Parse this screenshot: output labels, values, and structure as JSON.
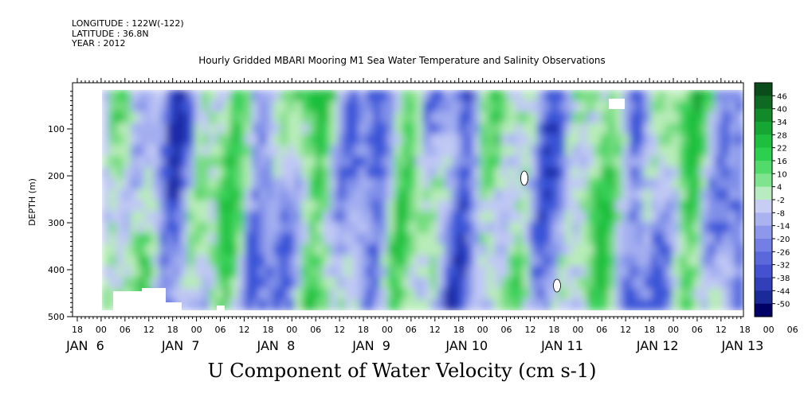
{
  "header": {
    "longitude": "LONGITUDE : 122W(-122)",
    "latitude": "LATITUDE : 36.8N",
    "year": "YEAR : 2012"
  },
  "chart_data": {
    "type": "heatmap",
    "title": "Hourly Gridded MBARI Mooring M1 Sea Water Temperature and Salinity Observations",
    "xlabel": "U Component of Water Velocity (cm s-1)",
    "ylabel": "DEPTH (m)",
    "ylim": [
      500,
      0
    ],
    "y_ticks": [
      100,
      200,
      300,
      400,
      500
    ],
    "x_hour_ticks": [
      "18",
      "00",
      "06",
      "12",
      "18",
      "00",
      "06",
      "12",
      "18",
      "00",
      "06",
      "12",
      "18",
      "00",
      "06",
      "12",
      "18",
      "00",
      "06",
      "12",
      "18",
      "00",
      "06",
      "12",
      "18",
      "00",
      "06",
      "12",
      "18",
      "00",
      "06",
      "12"
    ],
    "x_date_labels": [
      "JAN  6",
      "JAN  7",
      "JAN  8",
      "JAN  9",
      "JAN 10",
      "JAN 11",
      "JAN 12",
      "JAN 13"
    ],
    "colorbar_labels": [
      "46",
      "40",
      "34",
      "28",
      "22",
      "16",
      "10",
      "4",
      "-2",
      "-8",
      "-14",
      "-20",
      "-26",
      "-32",
      "-38",
      "-44",
      "-50"
    ],
    "colors": {
      "dark_green": "#0b4d1a",
      "green": "#1ec83c",
      "light_green": "#9ae89a",
      "light_blue": "#a8b4f0",
      "blue": "#5a6ee6",
      "dark_blue": "#101060"
    }
  }
}
